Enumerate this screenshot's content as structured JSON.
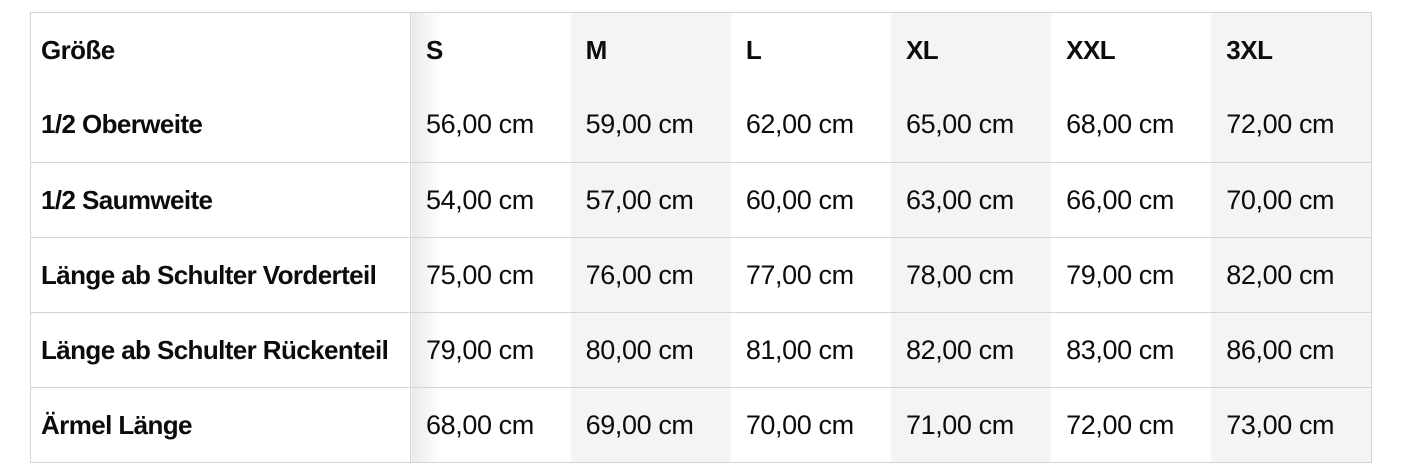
{
  "size_chart": {
    "corner_header": "Größe",
    "size_headers": [
      "S",
      "M",
      "L",
      "XL",
      "XXL",
      "3XL"
    ],
    "rows": [
      {
        "label": "1/2 Oberweite",
        "values": [
          "56,00 cm",
          "59,00 cm",
          "62,00 cm",
          "65,00 cm",
          "68,00 cm",
          "72,00 cm"
        ]
      },
      {
        "label": "1/2 Saumweite",
        "values": [
          "54,00 cm",
          "57,00 cm",
          "60,00 cm",
          "63,00 cm",
          "66,00 cm",
          "70,00 cm"
        ]
      },
      {
        "label": "Länge ab Schulter Vorderteil",
        "values": [
          "75,00 cm",
          "76,00 cm",
          "77,00 cm",
          "78,00 cm",
          "79,00 cm",
          "82,00 cm"
        ]
      },
      {
        "label": "Länge ab Schulter Rückenteil",
        "values": [
          "79,00 cm",
          "80,00 cm",
          "81,00 cm",
          "82,00 cm",
          "83,00 cm",
          "86,00 cm"
        ]
      },
      {
        "label": "Ärmel Länge",
        "values": [
          "68,00 cm",
          "69,00 cm",
          "70,00 cm",
          "71,00 cm",
          "72,00 cm",
          "73,00 cm"
        ]
      }
    ],
    "colors": {
      "background": "#ffffff",
      "stripe": "#f4f4f4",
      "border": "#d4d4d4",
      "text": "#0c0c0c",
      "scroll_shadow": "#e9e9e9"
    }
  }
}
